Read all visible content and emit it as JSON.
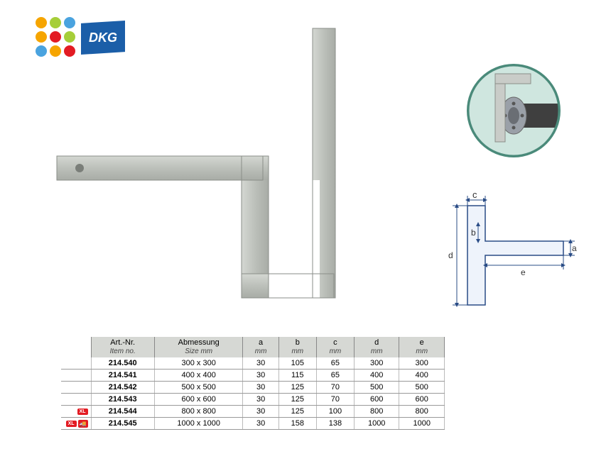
{
  "logo": {
    "dot_colors": [
      "#f6a500",
      "#a6ce39",
      "#4aa3df",
      "#f6a500",
      "#e31b23",
      "#a6ce39",
      "#4aa3df",
      "#f6a500",
      "#e31b23"
    ],
    "dkg_text": "DKG",
    "dkg_bg": "#1b5ea8"
  },
  "product_square": {
    "metal_light": "#c9ccc8",
    "metal_mid": "#b0b4af",
    "metal_dark": "#9b9f9a",
    "hole_color": "#7a7e79"
  },
  "circle_detail": {
    "ring_outer": "#4a8a7a",
    "ring_inner": "#ffffff",
    "bg": "#cfe6df",
    "flange": "#9aa0a8",
    "pipe": "#4a4a4a",
    "square_metal": "#c9ccc8"
  },
  "dim_diagram": {
    "line_color": "#2a4c86",
    "part_fill": "#eef3fb",
    "part_stroke": "#2a4c86",
    "labels": {
      "a": "a",
      "b": "b",
      "c": "c",
      "d": "d",
      "e": "e"
    }
  },
  "table": {
    "header_bg": "#d6d8d4",
    "grid": "#999",
    "columns": [
      {
        "l1": "Art.-Nr.",
        "l2": "Item no."
      },
      {
        "l1": "Abmessung",
        "l2": "Size mm"
      },
      {
        "l1": "a",
        "l2": "mm"
      },
      {
        "l1": "b",
        "l2": "mm"
      },
      {
        "l1": "c",
        "l2": "mm"
      },
      {
        "l1": "d",
        "l2": "mm"
      },
      {
        "l1": "e",
        "l2": "mm"
      }
    ],
    "rows": [
      {
        "badges": [],
        "item": "214.540",
        "size": "300 x   300",
        "a": 30,
        "b": 105,
        "c": 65,
        "d": 300,
        "e": 300
      },
      {
        "badges": [],
        "item": "214.541",
        "size": "400 x   400",
        "a": 30,
        "b": 115,
        "c": 65,
        "d": 400,
        "e": 400
      },
      {
        "badges": [],
        "item": "214.542",
        "size": "500 x   500",
        "a": 30,
        "b": 125,
        "c": 70,
        "d": 500,
        "e": 500
      },
      {
        "badges": [],
        "item": "214.543",
        "size": "600 x   600",
        "a": 30,
        "b": 125,
        "c": 70,
        "d": 600,
        "e": 600
      },
      {
        "badges": [
          "XL"
        ],
        "item": "214.544",
        "size": "800 x   800",
        "a": 30,
        "b": 125,
        "c": 100,
        "d": 800,
        "e": 800
      },
      {
        "badges": [
          "XL",
          "🚚"
        ],
        "item": "214.545",
        "size": "1000 x 1000",
        "a": 30,
        "b": 158,
        "c": 138,
        "d": 1000,
        "e": 1000
      }
    ]
  }
}
